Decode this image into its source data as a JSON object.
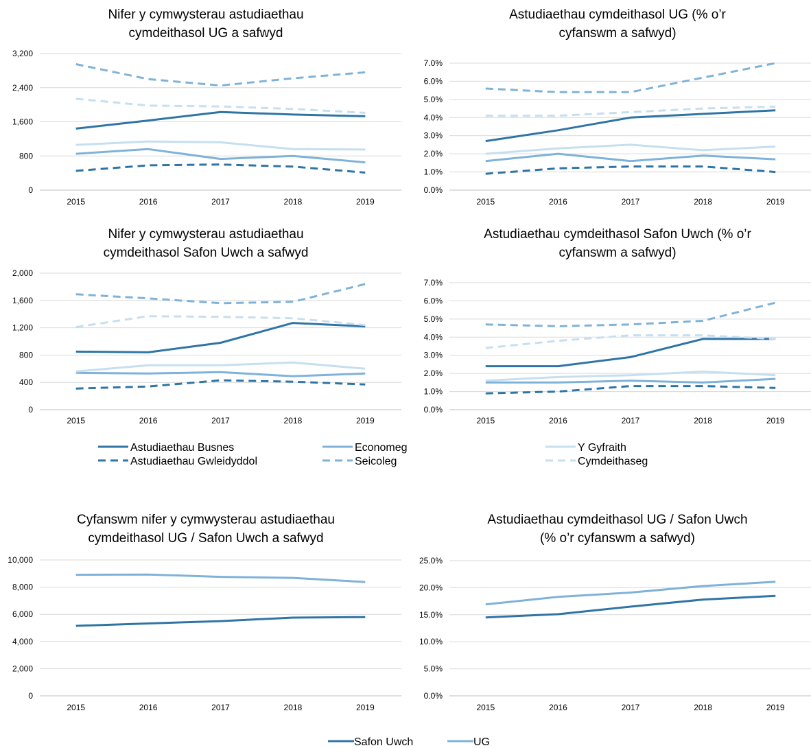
{
  "chart_data": [
    {
      "type": "line",
      "title": [
        "Nifer y cymwysterau astudiaethau",
        "cymdeithasol UG a safwyd"
      ],
      "categories": [
        "2015",
        "2016",
        "2017",
        "2018",
        "2019"
      ],
      "ylim": [
        0,
        3200
      ],
      "yticks": [
        0,
        800,
        1600,
        2400,
        3200
      ],
      "ytick_labels": [
        "0",
        "800",
        "1,600",
        "2,400",
        "3,200"
      ],
      "series": [
        {
          "key": "busnes",
          "values": [
            1440,
            1630,
            1830,
            1770,
            1730
          ]
        },
        {
          "key": "economeg",
          "values": [
            850,
            960,
            730,
            800,
            650
          ]
        },
        {
          "key": "gyfraith",
          "values": [
            1060,
            1140,
            1120,
            960,
            950
          ]
        },
        {
          "key": "gwleidyddol",
          "values": [
            450,
            580,
            600,
            550,
            410
          ]
        },
        {
          "key": "seicoleg",
          "values": [
            2950,
            2600,
            2450,
            2620,
            2760
          ]
        },
        {
          "key": "cymdeithaseg",
          "values": [
            2140,
            1980,
            1960,
            1900,
            1810
          ]
        }
      ]
    },
    {
      "type": "line",
      "title": [
        "Astudiaethau cymdeithasol UG (% o’r",
        "cyfanswm a safwyd)"
      ],
      "categories": [
        "2015",
        "2016",
        "2017",
        "2018",
        "2019"
      ],
      "ylim": [
        0,
        7
      ],
      "yticks": [
        0,
        1,
        2,
        3,
        4,
        5,
        6,
        7
      ],
      "ytick_labels": [
        "0.0%",
        "1.0%",
        "2.0%",
        "3.0%",
        "4.0%",
        "5.0%",
        "6.0%",
        "7.0%"
      ],
      "series": [
        {
          "key": "busnes",
          "values": [
            2.7,
            3.3,
            4.0,
            4.2,
            4.4
          ]
        },
        {
          "key": "economeg",
          "values": [
            1.6,
            2.0,
            1.6,
            1.9,
            1.7
          ]
        },
        {
          "key": "gyfraith",
          "values": [
            2.0,
            2.3,
            2.5,
            2.2,
            2.4
          ]
        },
        {
          "key": "gwleidyddol",
          "values": [
            0.9,
            1.2,
            1.3,
            1.3,
            1.0
          ]
        },
        {
          "key": "seicoleg",
          "values": [
            5.6,
            5.4,
            5.4,
            6.2,
            7.0
          ]
        },
        {
          "key": "cymdeithaseg",
          "values": [
            4.1,
            4.1,
            4.3,
            4.5,
            4.6
          ]
        }
      ]
    },
    {
      "type": "line",
      "title": [
        "Nifer y cymwysterau astudiaethau",
        "cymdeithasol Safon Uwch a safwyd"
      ],
      "categories": [
        "2015",
        "2016",
        "2017",
        "2018",
        "2019"
      ],
      "ylim": [
        0,
        2000
      ],
      "yticks": [
        0,
        400,
        800,
        1200,
        1600,
        2000
      ],
      "ytick_labels": [
        "0",
        "400",
        "800",
        "1,200",
        "1,600",
        "2,000"
      ],
      "series": [
        {
          "key": "busnes",
          "values": [
            850,
            840,
            980,
            1270,
            1220
          ]
        },
        {
          "key": "economeg",
          "values": [
            540,
            530,
            550,
            490,
            530
          ]
        },
        {
          "key": "gyfraith",
          "values": [
            560,
            650,
            650,
            690,
            600
          ]
        },
        {
          "key": "gwleidyddol",
          "values": [
            310,
            340,
            430,
            410,
            370
          ]
        },
        {
          "key": "seicoleg",
          "values": [
            1690,
            1630,
            1560,
            1580,
            1840
          ]
        },
        {
          "key": "cymdeithaseg",
          "values": [
            1210,
            1370,
            1360,
            1340,
            1240
          ]
        }
      ]
    },
    {
      "type": "line",
      "title": [
        "Astudiaethau cymdeithasol Safon Uwch (% o’r",
        "cyfanswm a safwyd)"
      ],
      "categories": [
        "2015",
        "2016",
        "2017",
        "2018",
        "2019"
      ],
      "ylim": [
        0,
        7
      ],
      "yticks": [
        0,
        1,
        2,
        3,
        4,
        5,
        6,
        7
      ],
      "ytick_labels": [
        "0.0%",
        "1.0%",
        "2.0%",
        "3.0%",
        "4.0%",
        "5.0%",
        "6.0%",
        "7.0%"
      ],
      "series": [
        {
          "key": "busnes",
          "values": [
            2.4,
            2.4,
            2.9,
            3.9,
            3.9
          ]
        },
        {
          "key": "economeg",
          "values": [
            1.5,
            1.5,
            1.6,
            1.5,
            1.7
          ]
        },
        {
          "key": "gyfraith",
          "values": [
            1.6,
            1.8,
            1.9,
            2.1,
            1.9
          ]
        },
        {
          "key": "gwleidyddol",
          "values": [
            0.9,
            1.0,
            1.3,
            1.3,
            1.2
          ]
        },
        {
          "key": "seicoleg",
          "values": [
            4.7,
            4.6,
            4.7,
            4.9,
            5.9
          ]
        },
        {
          "key": "cymdeithaseg",
          "values": [
            3.4,
            3.8,
            4.1,
            4.1,
            3.9
          ]
        }
      ]
    },
    {
      "type": "line",
      "title": [
        "Cyfanswm nifer y cymwysterau astudiaethau",
        "cymdeithasol UG / Safon Uwch a safwyd"
      ],
      "categories": [
        "2015",
        "2016",
        "2017",
        "2018",
        "2019"
      ],
      "ylim": [
        0,
        10000
      ],
      "yticks": [
        0,
        2000,
        4000,
        6000,
        8000,
        10000
      ],
      "ytick_labels": [
        "0",
        "2,000",
        "4,000",
        "6,000",
        "8,000",
        "10,000"
      ],
      "series": [
        {
          "key": "safonuwch",
          "values": [
            5150,
            5330,
            5500,
            5760,
            5800
          ]
        },
        {
          "key": "ug",
          "values": [
            8910,
            8930,
            8760,
            8680,
            8380
          ]
        }
      ]
    },
    {
      "type": "line",
      "title": [
        "Astudiaethau cymdeithasol UG / Safon Uwch",
        "(% o’r cyfanswm a safwyd)"
      ],
      "categories": [
        "2015",
        "2016",
        "2017",
        "2018",
        "2019"
      ],
      "ylim": [
        0,
        25
      ],
      "yticks": [
        0,
        5,
        10,
        15,
        20,
        25
      ],
      "ytick_labels": [
        "0.0%",
        "5.0%",
        "10.0%",
        "15.0%",
        "20.0%",
        "25.0%"
      ],
      "series": [
        {
          "key": "safonuwch",
          "values": [
            14.5,
            15.1,
            16.5,
            17.8,
            18.5
          ]
        },
        {
          "key": "ug",
          "values": [
            16.9,
            18.3,
            19.1,
            20.3,
            21.1
          ]
        }
      ]
    }
  ],
  "legend_subjects": [
    {
      "key": "busnes",
      "name": "Astudiaethau Busnes",
      "color": "#2e75a6",
      "dash": "solid"
    },
    {
      "key": "economeg",
      "name": "Economeg",
      "color": "#7fb2d9",
      "dash": "solid"
    },
    {
      "key": "gyfraith",
      "name": "Y Gyfraith",
      "color": "#c6dff0",
      "dash": "solid"
    },
    {
      "key": "gwleidyddol",
      "name": "Astudiaethau Gwleidyddol",
      "color": "#2e75a6",
      "dash": "dashed"
    },
    {
      "key": "seicoleg",
      "name": "Seicoleg",
      "color": "#7fb2d9",
      "dash": "dashed"
    },
    {
      "key": "cymdeithaseg",
      "name": "Cymdeithaseg",
      "color": "#c6dff0",
      "dash": "dashed"
    }
  ],
  "legend_totals": [
    {
      "key": "safonuwch",
      "name": "Safon Uwch",
      "color": "#2e75a6",
      "dash": "solid"
    },
    {
      "key": "ug",
      "name": "UG",
      "color": "#7fb2d9",
      "dash": "solid"
    }
  ]
}
